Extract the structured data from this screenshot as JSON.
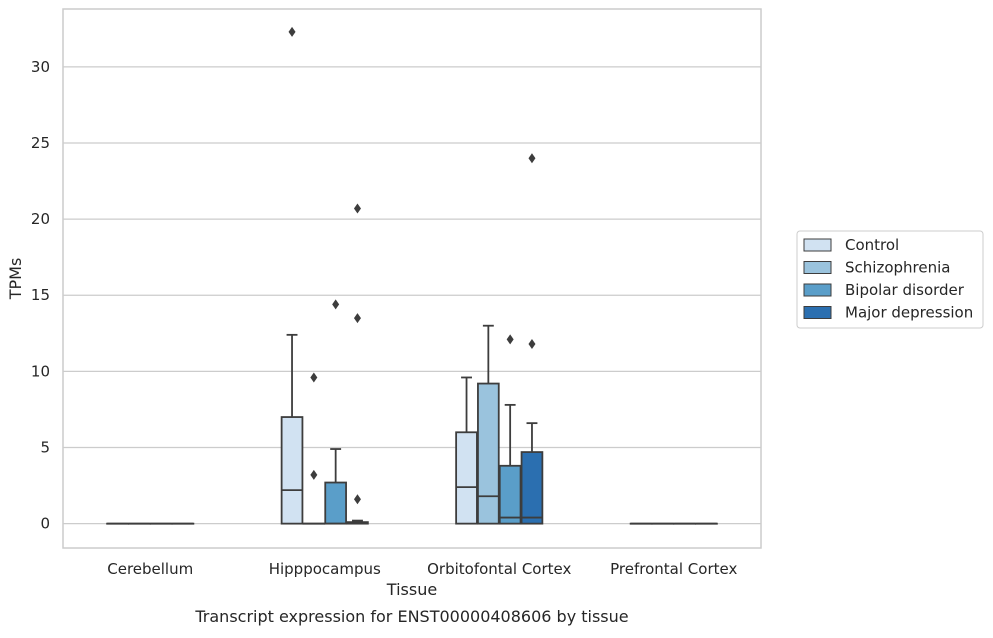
{
  "chart_data": {
    "type": "box",
    "title": "",
    "caption": "Transcript expression for ENST00000408606 by tissue",
    "xlabel": "Tissue",
    "ylabel": "TPMs",
    "ylim": [
      -1.6,
      33.8
    ],
    "yticks": [
      0,
      5,
      10,
      15,
      20,
      25,
      30
    ],
    "grid": "horizontal",
    "legend_position": "right",
    "categories": [
      "Cerebellum",
      "Hipppocampus",
      "Orbitofontal Cortex",
      "Prefrontal Cortex"
    ],
    "series": [
      {
        "name": "Control",
        "color": "#d1e2f2",
        "boxes": [
          {
            "category": "Cerebellum",
            "q1": 0,
            "median": 0,
            "q3": 0,
            "whisker_low": 0,
            "whisker_high": 0,
            "outliers": []
          },
          {
            "category": "Hipppocampus",
            "q1": 0,
            "median": 2.2,
            "q3": 7.0,
            "whisker_low": 0,
            "whisker_high": 12.4,
            "outliers": [
              32.3
            ]
          },
          {
            "category": "Orbitofontal Cortex",
            "q1": 0,
            "median": 2.4,
            "q3": 6.0,
            "whisker_low": 0,
            "whisker_high": 9.6,
            "outliers": []
          },
          {
            "category": "Prefrontal Cortex",
            "q1": 0,
            "median": 0,
            "q3": 0,
            "whisker_low": 0,
            "whisker_high": 0,
            "outliers": []
          }
        ]
      },
      {
        "name": "Schizophrenia",
        "color": "#9ac3dd",
        "boxes": [
          {
            "category": "Cerebellum",
            "q1": 0,
            "median": 0,
            "q3": 0,
            "whisker_low": 0,
            "whisker_high": 0,
            "outliers": []
          },
          {
            "category": "Hipppocampus",
            "q1": 0,
            "median": 0,
            "q3": 0,
            "whisker_low": 0,
            "whisker_high": 0,
            "outliers": [
              9.6,
              3.2
            ]
          },
          {
            "category": "Orbitofontal Cortex",
            "q1": 0,
            "median": 1.8,
            "q3": 9.2,
            "whisker_low": 0,
            "whisker_high": 13.0,
            "outliers": []
          },
          {
            "category": "Prefrontal Cortex",
            "q1": 0,
            "median": 0,
            "q3": 0,
            "whisker_low": 0,
            "whisker_high": 0,
            "outliers": []
          }
        ]
      },
      {
        "name": "Bipolar disorder",
        "color": "#5a9ec9",
        "boxes": [
          {
            "category": "Cerebellum",
            "q1": 0,
            "median": 0,
            "q3": 0,
            "whisker_low": 0,
            "whisker_high": 0,
            "outliers": []
          },
          {
            "category": "Hipppocampus",
            "q1": 0,
            "median": 0,
            "q3": 2.7,
            "whisker_low": 0,
            "whisker_high": 4.9,
            "outliers": [
              14.4
            ]
          },
          {
            "category": "Orbitofontal Cortex",
            "q1": 0,
            "median": 0.4,
            "q3": 3.8,
            "whisker_low": 0,
            "whisker_high": 7.8,
            "outliers": [
              12.1
            ]
          },
          {
            "category": "Prefrontal Cortex",
            "q1": 0,
            "median": 0,
            "q3": 0,
            "whisker_low": 0,
            "whisker_high": 0,
            "outliers": []
          }
        ]
      },
      {
        "name": "Major depression",
        "color": "#2b6fb0",
        "boxes": [
          {
            "category": "Cerebellum",
            "q1": 0,
            "median": 0,
            "q3": 0,
            "whisker_low": 0,
            "whisker_high": 0,
            "outliers": []
          },
          {
            "category": "Hipppocampus",
            "q1": 0,
            "median": 0,
            "q3": 0.1,
            "whisker_low": 0,
            "whisker_high": 0.2,
            "outliers": [
              20.7,
              13.5,
              1.6
            ]
          },
          {
            "category": "Orbitofontal Cortex",
            "q1": 0,
            "median": 0.4,
            "q3": 4.7,
            "whisker_low": 0,
            "whisker_high": 6.6,
            "outliers": [
              24.0,
              11.8
            ]
          },
          {
            "category": "Prefrontal Cortex",
            "q1": 0,
            "median": 0,
            "q3": 0,
            "whisker_low": 0,
            "whisker_high": 0,
            "outliers": []
          }
        ]
      }
    ]
  }
}
